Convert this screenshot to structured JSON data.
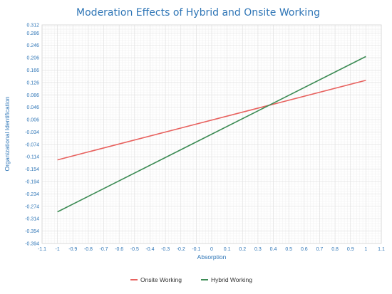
{
  "chart_data": {
    "type": "line",
    "title": "Moderation Effects of Hybrid and Onsite Working",
    "xlabel": "Absorption",
    "ylabel": "Organizational Identification",
    "xlim": [
      -1.1,
      1.1
    ],
    "ylim": [
      -0.394,
      0.312
    ],
    "x_ticks": [
      "-1.1",
      "-1",
      "-0.9",
      "-0.8",
      "-0.7",
      "-0.6",
      "-0.5",
      "-0.4",
      "-0.3",
      "-0.2",
      "-0.1",
      "0",
      "0.1",
      "0.2",
      "0.3",
      "0.4",
      "0.5",
      "0.6",
      "0.7",
      "0.8",
      "0.9",
      "1",
      "1.1"
    ],
    "y_ticks": [
      "0.312",
      "0.286",
      "0.246",
      "0.206",
      "0.166",
      "0.126",
      "0.086",
      "0.046",
      "0.006",
      "-0.034",
      "-0.074",
      "-0.114",
      "-0.154",
      "-0.194",
      "-0.234",
      "-0.274",
      "-0.314",
      "-0.354",
      "-0.394"
    ],
    "grid": true,
    "legend_position": "bottom",
    "series": [
      {
        "name": "Onsite Working",
        "color": "#e8625f",
        "x": [
          -1,
          1
        ],
        "y": [
          -0.124,
          0.133
        ]
      },
      {
        "name": "Hybrid Working",
        "color": "#3d8c55",
        "x": [
          -1,
          1
        ],
        "y": [
          -0.292,
          0.21
        ]
      }
    ]
  }
}
